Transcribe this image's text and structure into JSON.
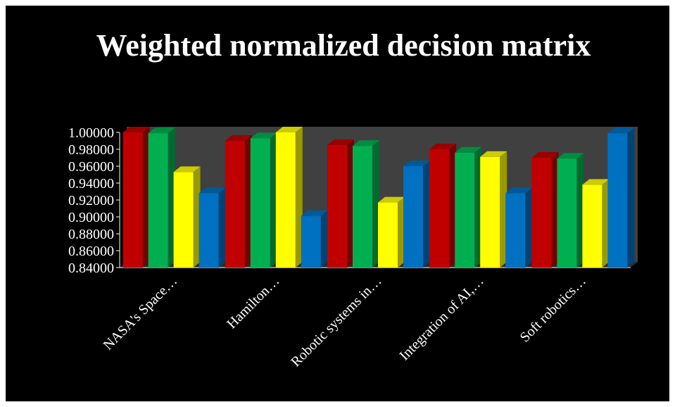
{
  "chart_data": {
    "type": "bar",
    "title": "Weighted normalized decision matrix",
    "categories": [
      "NASA's Space…",
      "Hamilton…",
      "Robotic systems in…",
      "Integration of AI,…",
      "Soft robotics…"
    ],
    "series": [
      {
        "color": "#c00000",
        "values": [
          1.0,
          0.99,
          0.985,
          0.98,
          0.97
        ]
      },
      {
        "color": "#00b050",
        "values": [
          0.999,
          0.993,
          0.984,
          0.976,
          0.969
        ]
      },
      {
        "color": "#ffff00",
        "values": [
          0.953,
          1.0,
          0.917,
          0.971,
          0.938
        ]
      },
      {
        "color": "#0070c0",
        "values": [
          0.928,
          0.901,
          0.96,
          0.928,
          0.999
        ]
      }
    ],
    "yticks": [
      "0.84000",
      "0.86000",
      "0.88000",
      "0.90000",
      "0.92000",
      "0.94000",
      "0.96000",
      "0.98000",
      "1.00000"
    ],
    "ylim": [
      0.84,
      1.0
    ],
    "style": "3d-clustered-column",
    "background": "#000000",
    "wall_color": "#404040"
  }
}
